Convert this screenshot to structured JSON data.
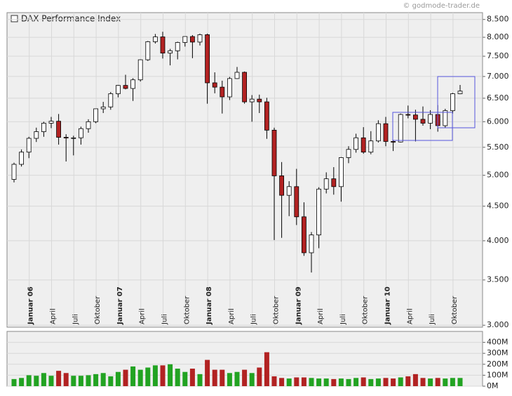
{
  "source": "© godmode-trader.de",
  "chart_data": [
    {
      "type": "candlestick",
      "legend": "DAX Performance Index",
      "log_scale": true,
      "grid": true,
      "up_color": "#ffffff",
      "down_color": "#b22222",
      "edge_color": "#000000",
      "categories": [
        null,
        null,
        "Januar 06",
        null,
        null,
        "April",
        null,
        null,
        "Juli",
        null,
        null,
        "Oktober",
        null,
        null,
        "Januar 07",
        null,
        null,
        "April",
        null,
        null,
        "Juli",
        null,
        null,
        "Oktober",
        null,
        null,
        "Januar 08",
        null,
        null,
        "April",
        null,
        null,
        "Juli",
        null,
        null,
        "Oktober",
        null,
        null,
        "Januar 09",
        null,
        null,
        "April",
        null,
        null,
        "Juli",
        null,
        null,
        "Oktober",
        null,
        null,
        "Januar 10",
        null,
        null,
        "April",
        null,
        null,
        "Juli",
        null,
        null,
        "Oktober",
        null
      ],
      "open": [
        4930,
        5190,
        5410,
        5670,
        5800,
        5970,
        6010,
        5690,
        5680,
        5680,
        5860,
        6000,
        6270,
        6310,
        6600,
        6790,
        6720,
        6920,
        7410,
        7880,
        8010,
        7580,
        7640,
        7860,
        8020,
        7870,
        8070,
        6850,
        6750,
        6530,
        6950,
        7100,
        6420,
        6480,
        6420,
        5830,
        4990,
        4670,
        4810,
        4340,
        3840,
        4080,
        4770,
        4940,
        4810,
        5310,
        5460,
        5680,
        5410,
        5620,
        5960,
        5610,
        5600,
        6150,
        6140,
        6050,
        5970,
        6150,
        5920,
        6230,
        6600
      ],
      "high": [
        5220,
        5460,
        5700,
        5880,
        6000,
        6100,
        6160,
        5750,
        5720,
        5900,
        6050,
        6270,
        6420,
        6640,
        6800,
        7040,
        6960,
        7420,
        7900,
        8090,
        8150,
        7690,
        7880,
        8010,
        8060,
        8100,
        8100,
        7100,
        6900,
        6990,
        7230,
        7120,
        6570,
        6580,
        6510,
        5880,
        5230,
        4900,
        5110,
        4560,
        4120,
        4800,
        5050,
        5140,
        5320,
        5520,
        5760,
        5890,
        5810,
        6030,
        6100,
        5640,
        6170,
        6340,
        6250,
        6320,
        6240,
        6350,
        6270,
        6620,
        6800
      ],
      "low": [
        4880,
        5150,
        5300,
        5600,
        5700,
        5870,
        5550,
        5240,
        5350,
        5550,
        5780,
        5970,
        6180,
        6250,
        6520,
        6700,
        6440,
        6880,
        7380,
        7830,
        7440,
        7270,
        7420,
        7750,
        7450,
        7780,
        6380,
        6610,
        6170,
        6460,
        6940,
        6380,
        6000,
        6180,
        5660,
        4010,
        4040,
        4350,
        4220,
        3800,
        3590,
        3900,
        4700,
        4680,
        4570,
        5210,
        5400,
        5380,
        5370,
        5590,
        5520,
        5430,
        5590,
        6070,
        5610,
        5920,
        5850,
        5800,
        5880,
        6170,
        6590
      ],
      "close": [
        5190,
        5410,
        5670,
        5800,
        5970,
        6010,
        5690,
        5680,
        5680,
        5860,
        6000,
        6270,
        6310,
        6600,
        6790,
        6720,
        6920,
        7410,
        7880,
        8010,
        7580,
        7640,
        7860,
        8020,
        7870,
        8070,
        6850,
        6750,
        6530,
        6950,
        7100,
        6420,
        6480,
        6420,
        5830,
        4990,
        4670,
        4810,
        4340,
        3840,
        4080,
        4770,
        4940,
        4810,
        5310,
        5460,
        5680,
        5410,
        5620,
        5960,
        5610,
        5600,
        6150,
        6140,
        6050,
        5970,
        6150,
        5920,
        6230,
        6600,
        6660
      ],
      "ylim": [
        2980,
        8700
      ],
      "yticks": [
        {
          "value": 3000,
          "label": "3.000"
        },
        {
          "value": 3500,
          "label": "3.500"
        },
        {
          "value": 4000,
          "label": "4.000"
        },
        {
          "value": 4500,
          "label": "4.500"
        },
        {
          "value": 5000,
          "label": "5.000"
        },
        {
          "value": 5500,
          "label": "5.500"
        },
        {
          "value": 6000,
          "label": "6.000"
        },
        {
          "value": 6500,
          "label": "6.500"
        },
        {
          "value": 7000,
          "label": "7.000"
        },
        {
          "value": 7500,
          "label": "7.500"
        },
        {
          "value": 8000,
          "label": "8.000"
        },
        {
          "value": 8500,
          "label": "8.500"
        }
      ]
    },
    {
      "type": "bar",
      "grid": true,
      "up_color": "#22a322",
      "down_color": "#b22222",
      "values": [
        65,
        75,
        100,
        95,
        120,
        95,
        140,
        120,
        95,
        95,
        100,
        110,
        120,
        90,
        130,
        150,
        180,
        150,
        170,
        190,
        190,
        200,
        160,
        130,
        160,
        110,
        240,
        150,
        150,
        120,
        130,
        150,
        120,
        170,
        310,
        90,
        75,
        70,
        80,
        80,
        75,
        70,
        70,
        65,
        70,
        65,
        75,
        80,
        65,
        70,
        75,
        70,
        80,
        90,
        110,
        75,
        70,
        75,
        70,
        75,
        75
      ],
      "ylim": [
        0,
        500
      ],
      "yticks": [
        {
          "value": 0,
          "label": "0M"
        },
        {
          "value": 100,
          "label": "100M"
        },
        {
          "value": 200,
          "label": "200M"
        },
        {
          "value": 300,
          "label": "300M"
        },
        {
          "value": 400,
          "label": "400M"
        }
      ]
    }
  ]
}
